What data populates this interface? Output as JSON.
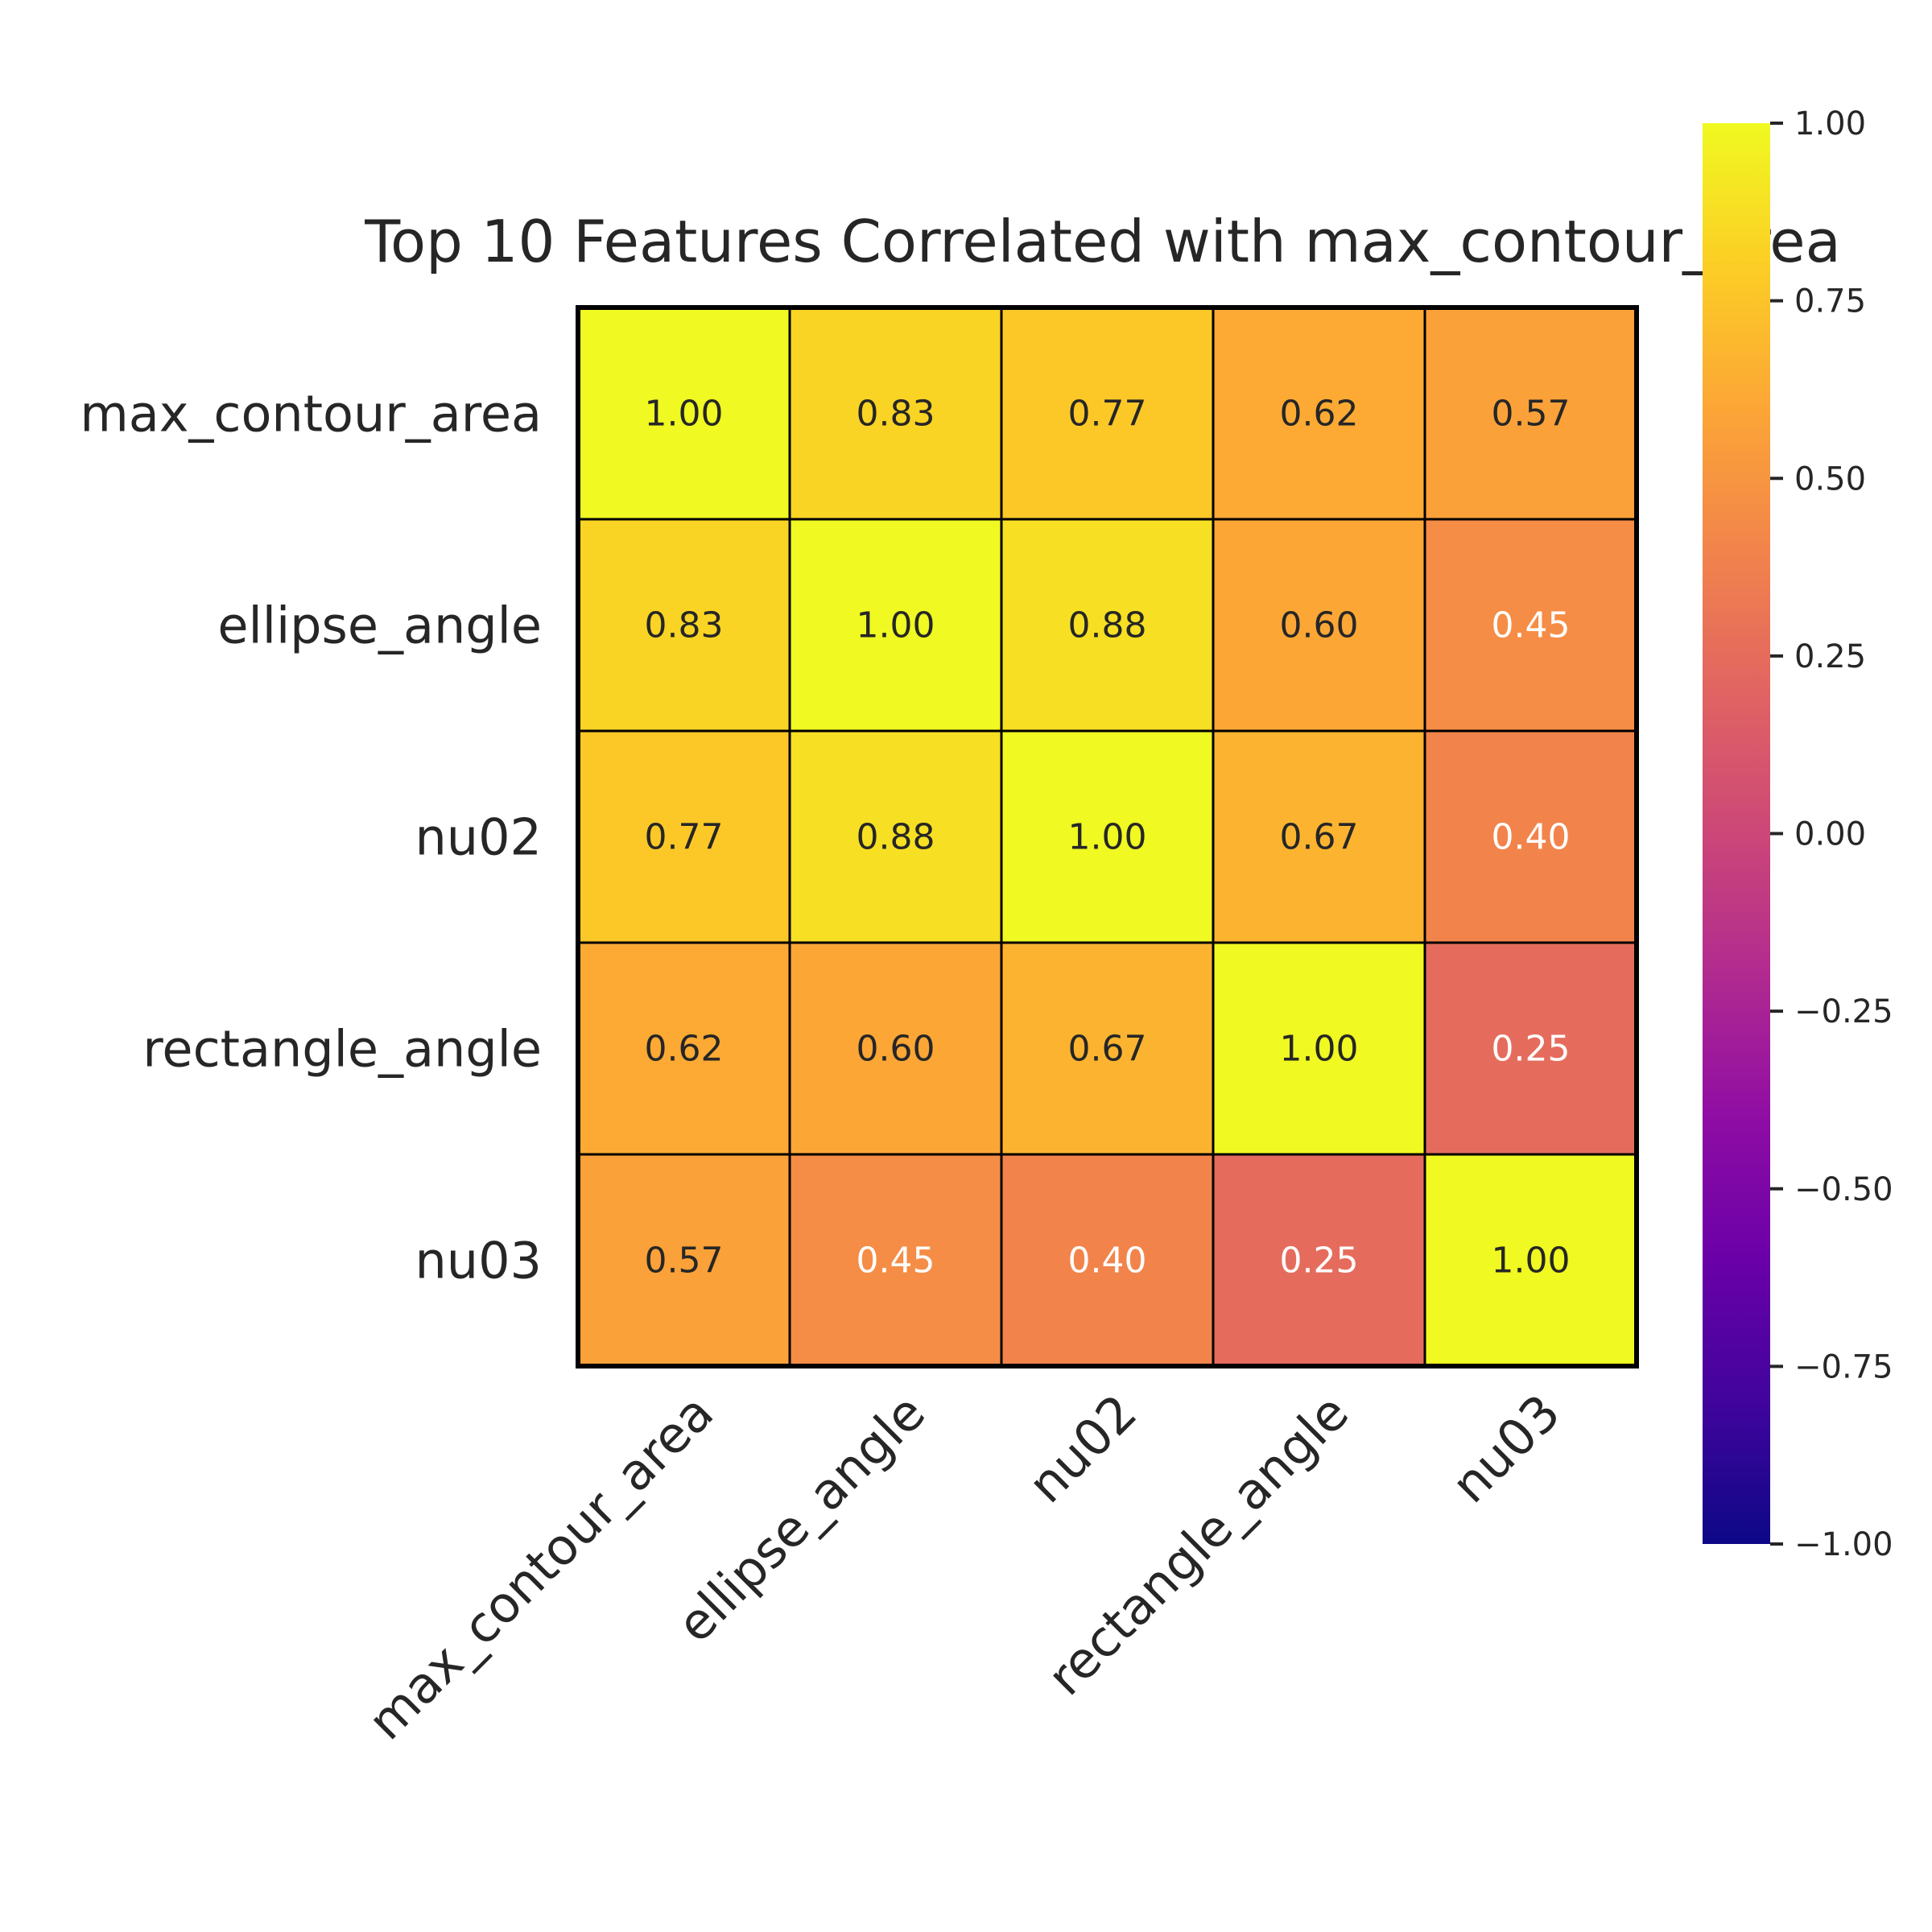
{
  "chart_data": {
    "type": "heatmap",
    "title": "Top 10 Features Correlated with max_contour_area",
    "rows": [
      "max_contour_area",
      "ellipse_angle",
      "nu02",
      "rectangle_angle",
      "nu03"
    ],
    "columns": [
      "max_contour_area",
      "ellipse_angle",
      "nu02",
      "rectangle_angle",
      "nu03"
    ],
    "values": [
      [
        1.0,
        0.83,
        0.77,
        0.62,
        0.57
      ],
      [
        0.83,
        1.0,
        0.88,
        0.6,
        0.45
      ],
      [
        0.77,
        0.88,
        1.0,
        0.67,
        0.4
      ],
      [
        0.62,
        0.6,
        0.67,
        1.0,
        0.25
      ],
      [
        0.57,
        0.45,
        0.4,
        0.25,
        1.0
      ]
    ],
    "value_labels": [
      [
        "1.00",
        "0.83",
        "0.77",
        "0.62",
        "0.57"
      ],
      [
        "0.83",
        "1.00",
        "0.88",
        "0.60",
        "0.45"
      ],
      [
        "0.77",
        "0.88",
        "1.00",
        "0.67",
        "0.40"
      ],
      [
        "0.62",
        "0.60",
        "0.67",
        "1.00",
        "0.25"
      ],
      [
        "0.57",
        "0.45",
        "0.40",
        "0.25",
        "1.00"
      ]
    ],
    "colormap": "plasma",
    "vmin": -1.0,
    "vmax": 1.0,
    "colorbar": {
      "ticks": [
        1.0,
        0.75,
        0.5,
        0.25,
        0.0,
        -0.25,
        -0.5,
        -0.75,
        -1.0
      ],
      "tick_labels": [
        "1.00",
        "0.75",
        "0.50",
        "0.25",
        "0.00",
        "−0.25",
        "−0.50",
        "−0.75",
        "−1.00"
      ]
    },
    "colors": {
      "text_dark": "#262626",
      "text_light": "#ffffff",
      "cell_border": "#000000"
    }
  }
}
